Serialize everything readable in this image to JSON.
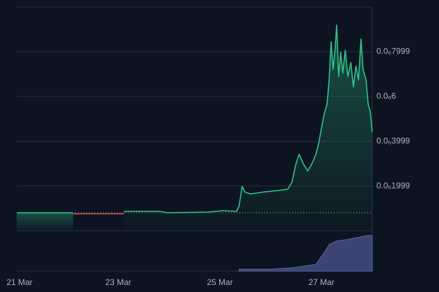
{
  "chart_data": [
    {
      "type": "line",
      "xlim": [
        21,
        28
      ],
      "xticks": [
        {
          "value": 21,
          "label": "21 Mar"
        },
        {
          "value": 23,
          "label": "23 Mar"
        },
        {
          "value": 25,
          "label": "25 Mar"
        },
        {
          "value": 27,
          "label": "27 Mar"
        }
      ],
      "ylim": [
        0,
        1e-06
      ],
      "yticks": [
        {
          "value": 1.999e-07,
          "label": "0.0₆1999"
        },
        {
          "value": 3.999e-07,
          "label": "0.0₆3999"
        },
        {
          "value": 6e-07,
          "label": "0.0₆6"
        },
        {
          "value": 7.999e-07,
          "label": "0.0₆7999"
        }
      ],
      "grid": true,
      "series": [
        {
          "color": "#2ec48c",
          "x": [
            21.0,
            21.49,
            22.11,
            22.59,
            23.11,
            23.82,
            23.96,
            24.78,
            25.05,
            25.33,
            25.38,
            25.44,
            25.49,
            25.6,
            25.88,
            26.15,
            26.34,
            26.42,
            26.49,
            26.56,
            26.64,
            26.73,
            26.81,
            26.89,
            26.95,
            27.0,
            27.05,
            27.11,
            27.15,
            27.19,
            27.23,
            27.27,
            27.3,
            27.34,
            27.38,
            27.42,
            27.47,
            27.52,
            27.58,
            27.63,
            27.68,
            27.73,
            27.78,
            27.82,
            27.88,
            27.92,
            27.96,
            28.0
          ],
          "values": [
            8.07e-08,
            8.07e-08,
            8.07e-08,
            null,
            8.7e-08,
            8.7e-08,
            8.07e-08,
            8.39e-08,
            9.01e-08,
            8.7e-08,
            1.118e-07,
            1.988e-07,
            1.739e-07,
            1.646e-07,
            1.739e-07,
            1.801e-07,
            1.863e-07,
            2.174e-07,
            2.919e-07,
            3.416e-07,
            3.012e-07,
            2.671e-07,
            2.981e-07,
            3.416e-07,
            3.944e-07,
            4.565e-07,
            5.186e-07,
            5.652e-07,
            6.646e-07,
            8.447e-07,
            7.205e-07,
            8.137e-07,
            9.193e-07,
            6.894e-07,
            7.981e-07,
            7.05e-07,
            8.075e-07,
            6.894e-07,
            7.516e-07,
            6.429e-07,
            7.36e-07,
            6.739e-07,
            8.571e-07,
            7.205e-07,
            6.739e-07,
            5.652e-07,
            5.342e-07,
            4.41e-07
          ]
        },
        {
          "color": "#e0524a",
          "x": [
            22.11,
            22.59,
            23.11
          ],
          "values": [
            7.6e-08,
            7.6e-08,
            7.6e-08
          ]
        }
      ]
    },
    {
      "type": "area",
      "color": "#3b4472",
      "xlim": [
        21,
        28
      ],
      "ylim": [
        0,
        60
      ],
      "x": [
        25.38,
        26.0,
        26.42,
        26.89,
        27.03,
        27.16,
        27.3,
        27.51,
        27.78,
        27.89,
        28.0
      ],
      "values": [
        3,
        3,
        5,
        10,
        25,
        40,
        45,
        47,
        51,
        53,
        53
      ]
    }
  ]
}
